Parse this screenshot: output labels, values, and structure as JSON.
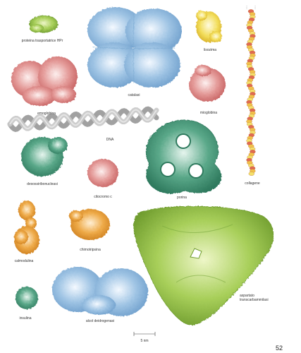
{
  "plate": {
    "page_number": "52",
    "scale_label": "5 nm",
    "labels": {
      "proteina_transportatrice": "proteina trasportatrice HPr",
      "catalasi": "catalasi",
      "lisozima": "lisozima",
      "emoglobina": "emoglobina",
      "mioglobina": "mioglobina",
      "dna": "DNA",
      "collagene": "collagene",
      "desossiribonucleasi": "desossiribonucleasi",
      "citocromo": "citocromo c",
      "porina": "porina",
      "calmodulina": "calmodulina",
      "chimotripsina": "chimotripsina",
      "insulina": "insulina",
      "alcol_deidrogenasi": "alcol deidrogenasi",
      "aspartato_1": "aspartato",
      "aspartato_2": "transcarbammilasi"
    },
    "colors": {
      "green": "#a8cf5a",
      "blue": "#9fc4e4",
      "yellow": "#f2dd5a",
      "red": "#e49a98",
      "teal": "#5aa889",
      "orange": "#eeaa48",
      "gray": "#b9b9b9"
    }
  }
}
